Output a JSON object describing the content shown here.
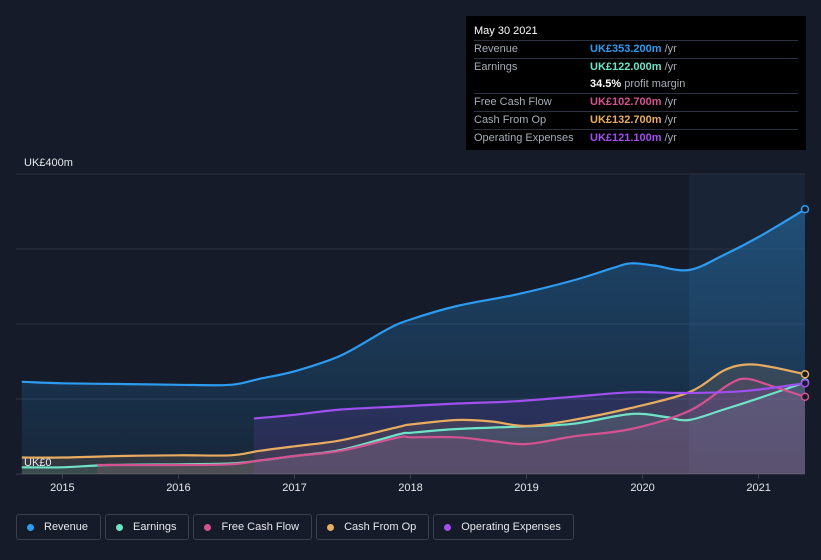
{
  "tooltip": {
    "date": "May 30 2021",
    "rows": [
      {
        "label": "Revenue",
        "value": "UK£353.200m",
        "unit": "/yr",
        "color": "#2d9cf0"
      },
      {
        "label": "Earnings",
        "value": "UK£122.000m",
        "unit": "/yr",
        "color": "#6fe3c6"
      },
      {
        "label": "",
        "value": "34.5%",
        "unit": "profit margin",
        "color": "#ffffff"
      },
      {
        "label": "Free Cash Flow",
        "value": "UK£102.700m",
        "unit": "/yr",
        "color": "#d45291"
      },
      {
        "label": "Cash From Op",
        "value": "UK£132.700m",
        "unit": "/yr",
        "color": "#e8ac61"
      },
      {
        "label": "Operating Expenses",
        "value": "UK£121.100m",
        "unit": "/yr",
        "color": "#a04ff0"
      }
    ]
  },
  "legend": [
    {
      "label": "Revenue",
      "color": "#2d9cf0"
    },
    {
      "label": "Earnings",
      "color": "#6fe3c6"
    },
    {
      "label": "Free Cash Flow",
      "color": "#d45291"
    },
    {
      "label": "Cash From Op",
      "color": "#e8ac61"
    },
    {
      "label": "Operating Expenses",
      "color": "#a04ff0"
    }
  ],
  "chart_data": {
    "type": "area",
    "title": "",
    "xlabel": "",
    "ylabel": "",
    "y_top_label": "UK£400m",
    "y_bottom_label": "UK£0",
    "ylim": [
      0,
      400
    ],
    "xlim": [
      2014.6,
      2021.4
    ],
    "x_ticks": [
      2015,
      2016,
      2017,
      2018,
      2019,
      2020,
      2021
    ],
    "x_tick_labels": [
      "2015",
      "2016",
      "2017",
      "2018",
      "2019",
      "2020",
      "2021"
    ],
    "grid": true,
    "highlight_start": 2020.4,
    "series": [
      {
        "name": "Revenue",
        "color": "#2d9cf0",
        "x": [
          2014.65,
          2015.0,
          2015.5,
          2016.0,
          2016.45,
          2016.7,
          2017.0,
          2017.4,
          2017.8,
          2018.0,
          2018.4,
          2018.9,
          2019.4,
          2019.75,
          2019.9,
          2020.1,
          2020.4,
          2020.7,
          2021.0,
          2021.4
        ],
        "y": [
          123,
          121,
          120,
          119,
          119,
          127,
          137,
          158,
          193,
          206,
          224,
          239,
          258,
          275,
          281,
          278,
          272,
          292,
          316,
          353
        ]
      },
      {
        "name": "Earnings",
        "color": "#6fe3c6",
        "x": [
          2014.65,
          2015.0,
          2015.4,
          2016.0,
          2016.45,
          2016.7,
          2017.0,
          2017.4,
          2017.9,
          2018.0,
          2018.4,
          2018.9,
          2019.4,
          2019.9,
          2020.2,
          2020.4,
          2020.7,
          2021.0,
          2021.4
        ],
        "y": [
          9,
          9,
          12,
          13,
          14,
          18,
          24,
          32,
          53,
          55,
          60,
          63,
          67,
          80,
          76,
          72,
          86,
          101,
          122
        ]
      },
      {
        "name": "Free Cash Flow",
        "color": "#d45291",
        "x": [
          2015.3,
          2016.0,
          2016.45,
          2016.7,
          2017.0,
          2017.4,
          2017.9,
          2018.0,
          2018.4,
          2018.7,
          2019.0,
          2019.4,
          2019.9,
          2020.4,
          2020.75,
          2020.9,
          2021.1,
          2021.4
        ],
        "y": [
          12,
          12,
          13,
          18,
          24,
          31,
          49,
          49,
          49,
          44,
          40,
          50,
          60,
          84,
          120,
          127,
          118,
          103
        ]
      },
      {
        "name": "Cash From Op",
        "color": "#e8ac61",
        "x": [
          2014.65,
          2015.0,
          2015.5,
          2016.0,
          2016.45,
          2016.7,
          2017.0,
          2017.4,
          2017.9,
          2018.0,
          2018.4,
          2018.7,
          2019.0,
          2019.4,
          2019.9,
          2020.4,
          2020.7,
          2020.9,
          2021.1,
          2021.4
        ],
        "y": [
          22,
          22,
          24,
          25,
          25,
          31,
          37,
          45,
          63,
          66,
          72,
          70,
          64,
          72,
          88,
          109,
          138,
          146,
          143,
          133
        ]
      },
      {
        "name": "Operating Expenses",
        "color": "#a04ff0",
        "x": [
          2016.65,
          2017.0,
          2017.4,
          2017.9,
          2018.4,
          2018.9,
          2019.4,
          2019.9,
          2020.4,
          2020.9,
          2021.4
        ],
        "y": [
          74,
          79,
          86,
          90,
          94,
          97,
          103,
          109,
          108,
          111,
          121
        ]
      }
    ]
  }
}
